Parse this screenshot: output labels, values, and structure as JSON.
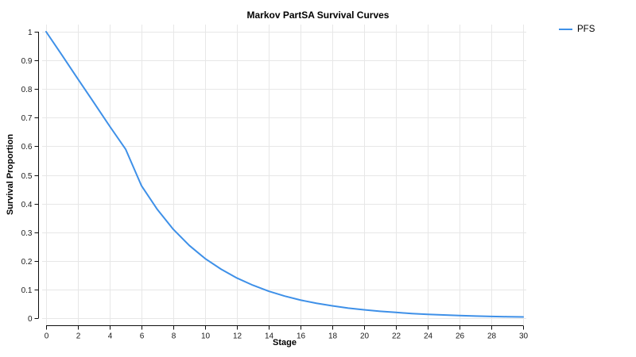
{
  "title": "Markov PartSA Survival Curves",
  "legend": {
    "position": "top-right",
    "items": [
      {
        "label": "PFS",
        "color": "#3E90E8"
      }
    ]
  },
  "colors": {
    "line": "#3E90E8",
    "grid": "#e7e7e7",
    "axis": "#0d0d0d",
    "background": "#ffffff"
  },
  "chart_data": {
    "type": "line",
    "title": "Markov PartSA Survival Curves",
    "xlabel": "Stage",
    "ylabel": "Survival Proportion",
    "xlim": [
      0,
      30
    ],
    "ylim": [
      0,
      1
    ],
    "x_ticks": [
      0,
      2,
      4,
      6,
      8,
      10,
      12,
      14,
      16,
      18,
      20,
      22,
      24,
      26,
      28,
      30
    ],
    "y_ticks": [
      0,
      0.1,
      0.2,
      0.3,
      0.4,
      0.5,
      0.6,
      0.7,
      0.8,
      0.9,
      1
    ],
    "grid": true,
    "legend_position": "top-right",
    "x": [
      0,
      1,
      2,
      3,
      4,
      5,
      6,
      7,
      8,
      9,
      10,
      11,
      12,
      13,
      14,
      15,
      16,
      17,
      18,
      19,
      20,
      21,
      22,
      23,
      24,
      25,
      26,
      27,
      28,
      29,
      30
    ],
    "series": [
      {
        "name": "PFS",
        "color": "#3E90E8",
        "values": [
          1,
          0.918,
          0.835,
          0.753,
          0.67,
          0.59,
          0.462,
          0.379,
          0.31,
          0.254,
          0.208,
          0.171,
          0.14,
          0.115,
          0.094,
          0.077,
          0.063,
          0.052,
          0.043,
          0.035,
          0.029,
          0.024,
          0.02,
          0.016,
          0.013,
          0.011,
          0.009,
          0.0073,
          0.006,
          0.0049,
          0.004
        ]
      }
    ]
  }
}
